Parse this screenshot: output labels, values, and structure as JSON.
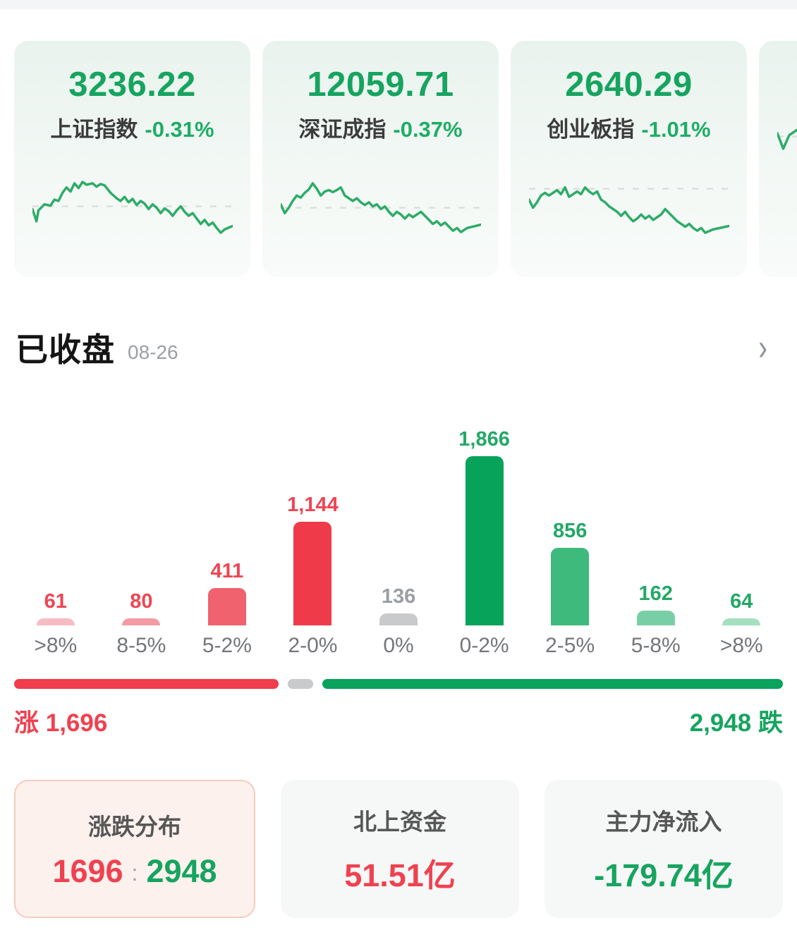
{
  "colors": {
    "up_red": "#ef4150",
    "down_green": "#16a45f",
    "neutral_gray": "#c9cacc",
    "sparkline_green": "#2dac68",
    "progress_red": "#f13c4c",
    "progress_gray": "#c9cacc",
    "progress_green": "#0aa35b"
  },
  "index_cards": [
    {
      "value": "3236.22",
      "name": "上证指数",
      "change": "-0.31%",
      "spark": {
        "baseline": 58,
        "points": [
          [
            0,
            62
          ],
          [
            2,
            80
          ],
          [
            3,
            64
          ],
          [
            6,
            55
          ],
          [
            9,
            57
          ],
          [
            11,
            48
          ],
          [
            13,
            50
          ],
          [
            15,
            38
          ],
          [
            17,
            30
          ],
          [
            19,
            36
          ],
          [
            21,
            24
          ],
          [
            23,
            31
          ],
          [
            25,
            22
          ],
          [
            27,
            26
          ],
          [
            30,
            24
          ],
          [
            32,
            29
          ],
          [
            34,
            25
          ],
          [
            36,
            27
          ],
          [
            39,
            38
          ],
          [
            42,
            46
          ],
          [
            44,
            50
          ],
          [
            46,
            44
          ],
          [
            48,
            52
          ],
          [
            50,
            47
          ],
          [
            52,
            56
          ],
          [
            54,
            50
          ],
          [
            56,
            54
          ],
          [
            58,
            62
          ],
          [
            60,
            55
          ],
          [
            62,
            60
          ],
          [
            64,
            68
          ],
          [
            66,
            61
          ],
          [
            68,
            65
          ],
          [
            70,
            72
          ],
          [
            72,
            64
          ],
          [
            74,
            58
          ],
          [
            76,
            66
          ],
          [
            78,
            72
          ],
          [
            80,
            68
          ],
          [
            82,
            76
          ],
          [
            84,
            84
          ],
          [
            86,
            78
          ],
          [
            88,
            86
          ],
          [
            90,
            82
          ],
          [
            92,
            90
          ],
          [
            94,
            97
          ],
          [
            96,
            92
          ],
          [
            100,
            87
          ]
        ]
      }
    },
    {
      "value": "12059.71",
      "name": "深证成指",
      "change": "-0.37%",
      "spark": {
        "baseline": 60,
        "points": [
          [
            0,
            55
          ],
          [
            2,
            68
          ],
          [
            4,
            60
          ],
          [
            6,
            50
          ],
          [
            8,
            42
          ],
          [
            10,
            45
          ],
          [
            12,
            38
          ],
          [
            14,
            33
          ],
          [
            16,
            24
          ],
          [
            18,
            32
          ],
          [
            20,
            42
          ],
          [
            22,
            36
          ],
          [
            24,
            34
          ],
          [
            26,
            37
          ],
          [
            28,
            34
          ],
          [
            30,
            30
          ],
          [
            32,
            42
          ],
          [
            34,
            46
          ],
          [
            36,
            50
          ],
          [
            38,
            46
          ],
          [
            40,
            52
          ],
          [
            42,
            56
          ],
          [
            44,
            52
          ],
          [
            46,
            58
          ],
          [
            48,
            55
          ],
          [
            50,
            62
          ],
          [
            52,
            58
          ],
          [
            54,
            66
          ],
          [
            56,
            72
          ],
          [
            58,
            66
          ],
          [
            60,
            70
          ],
          [
            62,
            76
          ],
          [
            64,
            70
          ],
          [
            66,
            74
          ],
          [
            68,
            70
          ],
          [
            70,
            66
          ],
          [
            72,
            72
          ],
          [
            74,
            78
          ],
          [
            76,
            84
          ],
          [
            78,
            80
          ],
          [
            80,
            86
          ],
          [
            82,
            82
          ],
          [
            84,
            88
          ],
          [
            86,
            94
          ],
          [
            88,
            90
          ],
          [
            90,
            96
          ],
          [
            93,
            90
          ],
          [
            100,
            85
          ]
        ]
      }
    },
    {
      "value": "2640.29",
      "name": "创业板指",
      "change": "-1.01%",
      "spark": {
        "baseline": 32,
        "points": [
          [
            0,
            48
          ],
          [
            2,
            60
          ],
          [
            4,
            52
          ],
          [
            6,
            42
          ],
          [
            8,
            38
          ],
          [
            10,
            42
          ],
          [
            12,
            38
          ],
          [
            14,
            34
          ],
          [
            16,
            40
          ],
          [
            18,
            30
          ],
          [
            20,
            44
          ],
          [
            22,
            40
          ],
          [
            24,
            36
          ],
          [
            26,
            40
          ],
          [
            28,
            30
          ],
          [
            30,
            36
          ],
          [
            32,
            40
          ],
          [
            34,
            36
          ],
          [
            36,
            48
          ],
          [
            38,
            52
          ],
          [
            40,
            58
          ],
          [
            42,
            62
          ],
          [
            44,
            66
          ],
          [
            46,
            72
          ],
          [
            48,
            66
          ],
          [
            50,
            74
          ],
          [
            52,
            80
          ],
          [
            54,
            76
          ],
          [
            56,
            70
          ],
          [
            58,
            76
          ],
          [
            60,
            72
          ],
          [
            62,
            78
          ],
          [
            64,
            74
          ],
          [
            66,
            70
          ],
          [
            68,
            62
          ],
          [
            70,
            68
          ],
          [
            72,
            74
          ],
          [
            74,
            80
          ],
          [
            76,
            84
          ],
          [
            78,
            88
          ],
          [
            80,
            84
          ],
          [
            82,
            90
          ],
          [
            84,
            94
          ],
          [
            86,
            90
          ],
          [
            88,
            97
          ],
          [
            92,
            92
          ],
          [
            100,
            87
          ]
        ]
      }
    },
    {
      "value": "",
      "name": "",
      "change": "",
      "spark": {
        "baseline": 60,
        "points": [
          [
            0,
            55
          ],
          [
            3,
            78
          ],
          [
            6,
            58
          ],
          [
            10,
            50
          ],
          [
            14,
            44
          ],
          [
            18,
            50
          ],
          [
            22,
            42
          ],
          [
            26,
            48
          ],
          [
            30,
            55
          ],
          [
            34,
            60
          ],
          [
            38,
            66
          ],
          [
            42,
            62
          ],
          [
            46,
            70
          ],
          [
            50,
            66
          ],
          [
            54,
            74
          ],
          [
            58,
            70
          ],
          [
            62,
            78
          ],
          [
            66,
            82
          ],
          [
            70,
            78
          ],
          [
            74,
            86
          ],
          [
            78,
            82
          ],
          [
            82,
            90
          ],
          [
            86,
            94
          ],
          [
            90,
            90
          ],
          [
            100,
            86
          ]
        ]
      }
    }
  ],
  "section": {
    "title": "已收盘",
    "date": "08-26",
    "chevron": "›"
  },
  "chart_data": {
    "type": "bar",
    "title": "涨跌分布",
    "categories": [
      ">8%",
      "8-5%",
      "5-2%",
      "2-0%",
      "0%",
      "0-2%",
      "2-5%",
      "5-8%",
      ">8%"
    ],
    "values": [
      61,
      80,
      411,
      1144,
      136,
      1866,
      856,
      162,
      64
    ],
    "value_labels": [
      "61",
      "80",
      "411",
      "1,144",
      "136",
      "1,866",
      "856",
      "162",
      "64"
    ],
    "bar_colors": [
      "#f7bcc3",
      "#f49aa3",
      "#f0626e",
      "#ef3a49",
      "#c9cacc",
      "#07a35a",
      "#3eba7c",
      "#79cfa5",
      "#a4dfc0"
    ],
    "label_colors": [
      "#ef4553",
      "#ef4553",
      "#ef4553",
      "#ef4553",
      "#9b9ea3",
      "#23a866",
      "#23a866",
      "#23a866",
      "#23a866"
    ],
    "ylim": [
      0,
      1866
    ],
    "grid": false,
    "legend": false,
    "advancers": 1696,
    "unchanged": 136,
    "decliners": 2948,
    "advancers_label": "涨 1,696",
    "decliners_label": "2,948 跌"
  },
  "summary_cards": {
    "distribution": {
      "title": "涨跌分布",
      "up": "1696",
      "separator": ":",
      "down": "2948"
    },
    "northbound": {
      "title": "北上资金",
      "value": "51.51亿"
    },
    "main_inflow": {
      "title": "主力净流入",
      "value": "-179.74亿"
    }
  }
}
